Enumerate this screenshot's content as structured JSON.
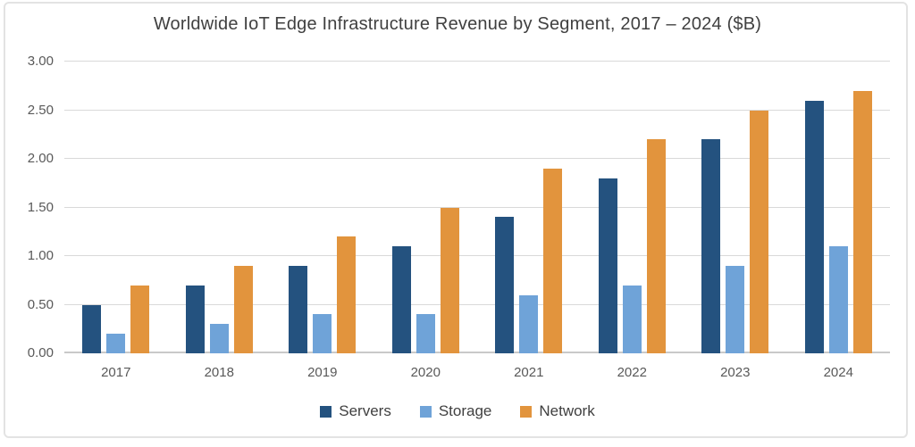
{
  "title": "Worldwide IoT Edge Infrastructure Revenue by Segment, 2017 – 2024 ($B)",
  "colors": {
    "servers": "#24527F",
    "storage": "#6FA3D8",
    "network": "#E2943D",
    "grid": "#D9D9D9",
    "axis_line": "#C9C9C9",
    "axis_text": "#595959",
    "title_text": "#404040",
    "border": "#E3E3E3"
  },
  "chart_data": {
    "type": "bar",
    "title": "Worldwide IoT Edge Infrastructure Revenue by Segment, 2017 – 2024 ($B)",
    "categories": [
      "2017",
      "2018",
      "2019",
      "2020",
      "2021",
      "2022",
      "2023",
      "2024"
    ],
    "series": [
      {
        "name": "Servers",
        "color_key": "servers",
        "values": [
          0.5,
          0.7,
          0.9,
          1.1,
          1.4,
          1.8,
          2.2,
          2.6
        ]
      },
      {
        "name": "Storage",
        "color_key": "storage",
        "values": [
          0.2,
          0.3,
          0.4,
          0.4,
          0.6,
          0.7,
          0.9,
          1.1
        ]
      },
      {
        "name": "Network",
        "color_key": "network",
        "values": [
          0.7,
          0.9,
          1.2,
          1.5,
          1.9,
          2.2,
          2.5,
          2.7
        ]
      }
    ],
    "xlabel": "",
    "ylabel": "",
    "ylim": [
      0,
      3.0
    ],
    "ytick_step": 0.5,
    "ytick_labels": [
      "0.00",
      "0.50",
      "1.00",
      "1.50",
      "2.00",
      "2.50",
      "3.00"
    ],
    "grid": true,
    "legend_position": "bottom"
  }
}
